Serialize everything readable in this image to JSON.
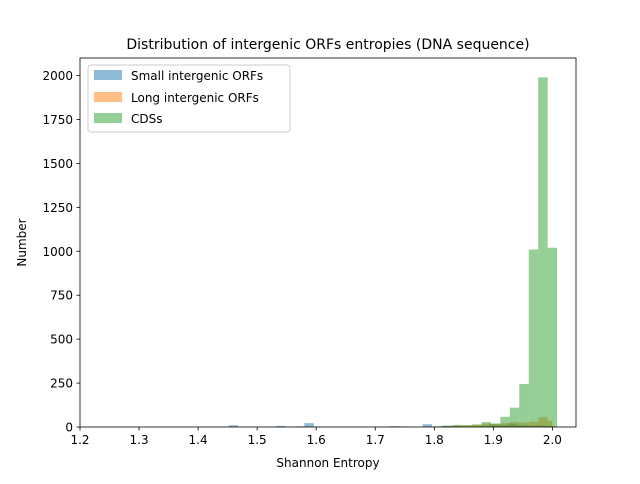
{
  "chart_data": {
    "type": "bar",
    "title": "Distribution of intergenic ORFs entropies (DNA sequence)",
    "xlabel": "Shannon Entropy",
    "ylabel": "Number",
    "xlim": [
      1.2,
      2.04
    ],
    "ylim": [
      0,
      2100
    ],
    "xticks": [
      1.2,
      1.3,
      1.4,
      1.5,
      1.6,
      1.7,
      1.8,
      1.9,
      2.0
    ],
    "xtick_labels": [
      "1.2",
      "1.3",
      "1.4",
      "1.5",
      "1.6",
      "1.7",
      "1.8",
      "1.9",
      "2.0"
    ],
    "yticks": [
      0,
      250,
      500,
      750,
      1000,
      1250,
      1500,
      1750,
      2000
    ],
    "ytick_labels": [
      "0",
      "250",
      "500",
      "750",
      "1000",
      "1250",
      "1500",
      "1750",
      "2000"
    ],
    "grid": false,
    "legend_position": "top-left",
    "series": [
      {
        "name": "Small intergenic ORFs",
        "color": "#1f77b4",
        "bins": [
          [
            1.452,
            1.468,
            10
          ],
          [
            1.532,
            1.548,
            6
          ],
          [
            1.564,
            1.58,
            4
          ],
          [
            1.58,
            1.596,
            22
          ],
          [
            1.596,
            1.612,
            3
          ],
          [
            1.724,
            1.74,
            5
          ],
          [
            1.74,
            1.756,
            3
          ],
          [
            1.78,
            1.796,
            16
          ],
          [
            1.812,
            1.828,
            7
          ],
          [
            1.828,
            1.844,
            4
          ],
          [
            1.876,
            1.892,
            6
          ],
          [
            1.892,
            1.908,
            15
          ],
          [
            1.908,
            1.924,
            12
          ],
          [
            1.924,
            1.94,
            18
          ],
          [
            1.94,
            1.956,
            12
          ],
          [
            1.956,
            1.972,
            8
          ],
          [
            1.972,
            1.988,
            10
          ],
          [
            1.988,
            2.0,
            6
          ]
        ]
      },
      {
        "name": "Long intergenic ORFs",
        "color": "#ff7f0e",
        "bins": [
          [
            1.8,
            1.816,
            3
          ],
          [
            1.816,
            1.832,
            5
          ],
          [
            1.832,
            1.848,
            8
          ],
          [
            1.848,
            1.864,
            10
          ],
          [
            1.864,
            1.88,
            14
          ],
          [
            1.88,
            1.896,
            20
          ],
          [
            1.896,
            1.912,
            18
          ],
          [
            1.912,
            1.928,
            22
          ],
          [
            1.928,
            1.944,
            28
          ],
          [
            1.944,
            1.96,
            25
          ],
          [
            1.96,
            1.976,
            30
          ],
          [
            1.976,
            1.992,
            55
          ],
          [
            1.992,
            2.0,
            35
          ]
        ]
      },
      {
        "name": "CDSs",
        "color": "#2ca02c",
        "bins": [
          [
            1.8,
            1.816,
            4
          ],
          [
            1.816,
            1.832,
            8
          ],
          [
            1.832,
            1.848,
            12
          ],
          [
            1.848,
            1.864,
            10
          ],
          [
            1.864,
            1.88,
            14
          ],
          [
            1.88,
            1.896,
            28
          ],
          [
            1.896,
            1.912,
            20
          ],
          [
            1.912,
            1.928,
            58
          ],
          [
            1.928,
            1.944,
            110
          ],
          [
            1.944,
            1.96,
            245
          ],
          [
            1.96,
            1.976,
            1010
          ],
          [
            1.976,
            1.992,
            1990
          ],
          [
            1.992,
            2.008,
            1020
          ]
        ]
      }
    ]
  }
}
